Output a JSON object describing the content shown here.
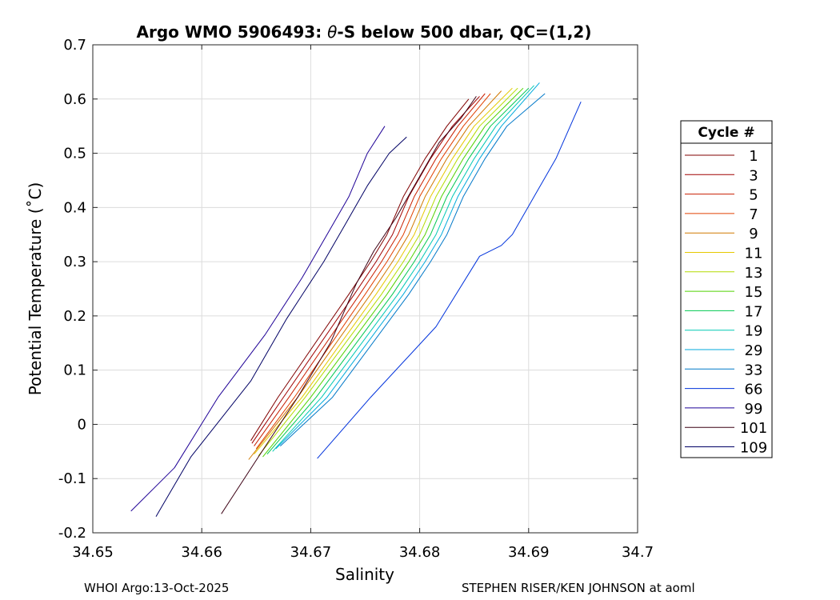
{
  "chart_data": {
    "type": "line",
    "title": "Argo WMO 5906493: θ-S below 500 dbar,  QC=(1,2)",
    "title_prefix": "Argo WMO 5906493: ",
    "title_symbol": "θ",
    "title_suffix": "-S below 500 dbar,  QC=(1,2)",
    "xlabel": "Salinity",
    "ylabel": "Potential Temperature (˚C)",
    "xlim": [
      34.65,
      34.7
    ],
    "ylim": [
      -0.2,
      0.7
    ],
    "xticks": [
      "34.65",
      "34.66",
      "34.67",
      "34.68",
      "34.69",
      "34.7"
    ],
    "yticks": [
      "-0.2",
      "-0.1",
      "0",
      "0.1",
      "0.2",
      "0.3",
      "0.4",
      "0.5",
      "0.6",
      "0.7"
    ],
    "grid": true,
    "legend_title": "Cycle #",
    "legend_position": "right-outside",
    "series": [
      {
        "name": "1",
        "color": "#800000",
        "points": [
          [
            34.6645,
            -0.03
          ],
          [
            34.667,
            0.05
          ],
          [
            34.6735,
            0.24
          ],
          [
            34.6755,
            0.3
          ],
          [
            34.677,
            0.35
          ],
          [
            34.6785,
            0.42
          ],
          [
            34.6805,
            0.49
          ],
          [
            34.6825,
            0.55
          ],
          [
            34.6845,
            0.6
          ]
        ]
      },
      {
        "name": "3",
        "color": "#a00000",
        "points": [
          [
            34.6646,
            -0.035
          ],
          [
            34.6675,
            0.05
          ],
          [
            34.674,
            0.24
          ],
          [
            34.676,
            0.3
          ],
          [
            34.6775,
            0.35
          ],
          [
            34.679,
            0.42
          ],
          [
            34.681,
            0.49
          ],
          [
            34.683,
            0.55
          ],
          [
            34.6855,
            0.605
          ]
        ]
      },
      {
        "name": "5",
        "color": "#c81e00",
        "points": [
          [
            34.6648,
            -0.04
          ],
          [
            34.668,
            0.05
          ],
          [
            34.6745,
            0.24
          ],
          [
            34.6765,
            0.3
          ],
          [
            34.678,
            0.35
          ],
          [
            34.6795,
            0.42
          ],
          [
            34.6815,
            0.49
          ],
          [
            34.6835,
            0.55
          ],
          [
            34.686,
            0.61
          ]
        ]
      },
      {
        "name": "7",
        "color": "#e04000",
        "points": [
          [
            34.665,
            -0.045
          ],
          [
            34.6685,
            0.05
          ],
          [
            34.675,
            0.24
          ],
          [
            34.677,
            0.3
          ],
          [
            34.6785,
            0.35
          ],
          [
            34.68,
            0.42
          ],
          [
            34.682,
            0.49
          ],
          [
            34.684,
            0.55
          ],
          [
            34.6865,
            0.61
          ]
        ]
      },
      {
        "name": "9",
        "color": "#d07800",
        "points": [
          [
            34.6643,
            -0.065
          ],
          [
            34.6688,
            0.05
          ],
          [
            34.6755,
            0.24
          ],
          [
            34.6775,
            0.3
          ],
          [
            34.679,
            0.35
          ],
          [
            34.6805,
            0.42
          ],
          [
            34.6825,
            0.49
          ],
          [
            34.6845,
            0.55
          ],
          [
            34.6875,
            0.615
          ]
        ]
      },
      {
        "name": "11",
        "color": "#e6c800",
        "points": [
          [
            34.6648,
            -0.055
          ],
          [
            34.6692,
            0.05
          ],
          [
            34.676,
            0.24
          ],
          [
            34.678,
            0.3
          ],
          [
            34.6795,
            0.35
          ],
          [
            34.681,
            0.42
          ],
          [
            34.683,
            0.49
          ],
          [
            34.685,
            0.55
          ],
          [
            34.6885,
            0.62
          ]
        ]
      },
      {
        "name": "13",
        "color": "#b4dc00",
        "points": [
          [
            34.6652,
            -0.058
          ],
          [
            34.6695,
            0.05
          ],
          [
            34.6765,
            0.24
          ],
          [
            34.6785,
            0.3
          ],
          [
            34.68,
            0.35
          ],
          [
            34.6815,
            0.42
          ],
          [
            34.6835,
            0.49
          ],
          [
            34.6855,
            0.55
          ],
          [
            34.689,
            0.62
          ]
        ]
      },
      {
        "name": "15",
        "color": "#50d200",
        "points": [
          [
            34.6656,
            -0.06
          ],
          [
            34.67,
            0.05
          ],
          [
            34.677,
            0.24
          ],
          [
            34.679,
            0.3
          ],
          [
            34.6805,
            0.35
          ],
          [
            34.682,
            0.42
          ],
          [
            34.684,
            0.49
          ],
          [
            34.686,
            0.55
          ],
          [
            34.6895,
            0.62
          ]
        ]
      },
      {
        "name": "17",
        "color": "#00c850",
        "points": [
          [
            34.666,
            -0.055
          ],
          [
            34.6705,
            0.05
          ],
          [
            34.6775,
            0.24
          ],
          [
            34.6795,
            0.3
          ],
          [
            34.681,
            0.35
          ],
          [
            34.6825,
            0.42
          ],
          [
            34.6845,
            0.49
          ],
          [
            34.6865,
            0.55
          ],
          [
            34.69,
            0.62
          ]
        ]
      },
      {
        "name": "19",
        "color": "#00c8b4",
        "points": [
          [
            34.6665,
            -0.05
          ],
          [
            34.671,
            0.05
          ],
          [
            34.678,
            0.24
          ],
          [
            34.68,
            0.3
          ],
          [
            34.6815,
            0.35
          ],
          [
            34.683,
            0.42
          ],
          [
            34.685,
            0.49
          ],
          [
            34.687,
            0.55
          ],
          [
            34.6905,
            0.625
          ]
        ]
      },
      {
        "name": "29",
        "color": "#00aadc",
        "points": [
          [
            34.6668,
            -0.045
          ],
          [
            34.6715,
            0.05
          ],
          [
            34.6785,
            0.24
          ],
          [
            34.6805,
            0.3
          ],
          [
            34.682,
            0.35
          ],
          [
            34.6835,
            0.42
          ],
          [
            34.6855,
            0.49
          ],
          [
            34.6875,
            0.55
          ],
          [
            34.691,
            0.63
          ]
        ]
      },
      {
        "name": "33",
        "color": "#0078c8",
        "points": [
          [
            34.6672,
            -0.04
          ],
          [
            34.672,
            0.05
          ],
          [
            34.679,
            0.24
          ],
          [
            34.681,
            0.3
          ],
          [
            34.6825,
            0.35
          ],
          [
            34.684,
            0.42
          ],
          [
            34.686,
            0.49
          ],
          [
            34.688,
            0.55
          ],
          [
            34.6915,
            0.61
          ]
        ]
      },
      {
        "name": "66",
        "color": "#0032dc",
        "points": [
          [
            34.6706,
            -0.063
          ],
          [
            34.6755,
            0.05
          ],
          [
            34.6815,
            0.18
          ],
          [
            34.6855,
            0.31
          ],
          [
            34.6875,
            0.33
          ],
          [
            34.6885,
            0.35
          ],
          [
            34.6905,
            0.42
          ],
          [
            34.6925,
            0.49
          ],
          [
            34.6948,
            0.595
          ]
        ]
      },
      {
        "name": "99",
        "color": "#1e0096",
        "points": [
          [
            34.6535,
            -0.16
          ],
          [
            34.6575,
            -0.08
          ],
          [
            34.6615,
            0.05
          ],
          [
            34.6658,
            0.165
          ],
          [
            34.6692,
            0.27
          ],
          [
            34.6715,
            0.35
          ],
          [
            34.6735,
            0.42
          ],
          [
            34.6752,
            0.5
          ],
          [
            34.6768,
            0.55
          ]
        ]
      },
      {
        "name": "101",
        "color": "#3c0014",
        "points": [
          [
            34.6618,
            -0.165
          ],
          [
            34.6652,
            -0.06
          ],
          [
            34.6688,
            0.05
          ],
          [
            34.6718,
            0.15
          ],
          [
            34.6742,
            0.26
          ],
          [
            34.6758,
            0.32
          ],
          [
            34.6778,
            0.38
          ],
          [
            34.6798,
            0.45
          ],
          [
            34.6818,
            0.52
          ],
          [
            34.6838,
            0.565
          ],
          [
            34.6852,
            0.605
          ]
        ]
      },
      {
        "name": "109",
        "color": "#000064",
        "points": [
          [
            34.6558,
            -0.17
          ],
          [
            34.659,
            -0.06
          ],
          [
            34.6645,
            0.08
          ],
          [
            34.6678,
            0.195
          ],
          [
            34.6712,
            0.3
          ],
          [
            34.6732,
            0.37
          ],
          [
            34.6752,
            0.44
          ],
          [
            34.6772,
            0.5
          ],
          [
            34.6788,
            0.53
          ]
        ]
      }
    ]
  },
  "footer": {
    "left": "WHOI Argo:13-Oct-2025",
    "right": "STEPHEN RISER/KEN JOHNSON at aoml"
  }
}
